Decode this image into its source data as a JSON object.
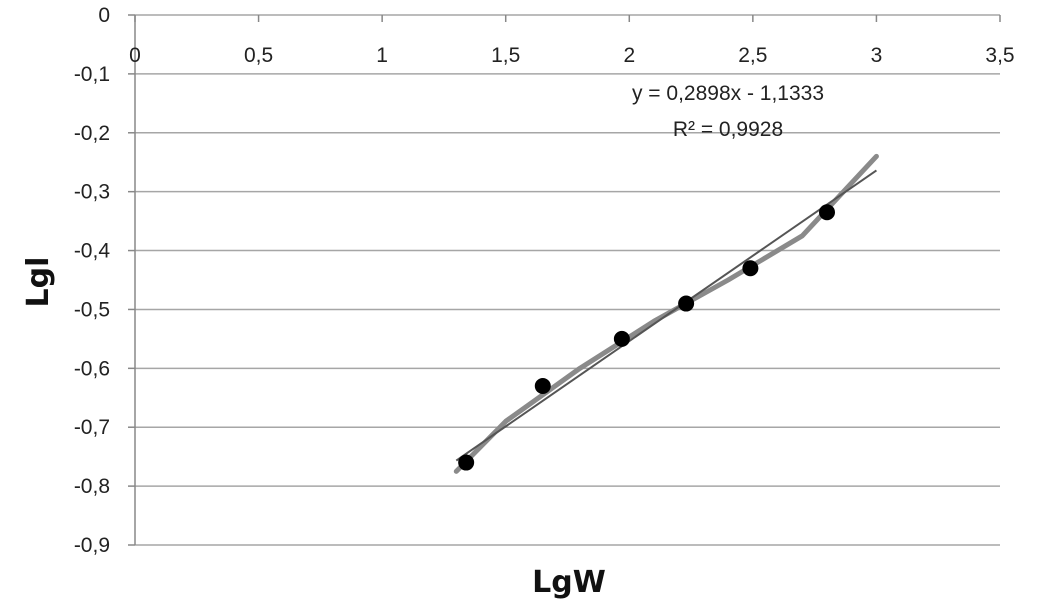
{
  "chart_data": {
    "type": "scatter",
    "title": "",
    "xlabel": "LgW",
    "ylabel": "Lgl",
    "xlim": [
      0,
      3.5
    ],
    "ylim": [
      -0.9,
      0
    ],
    "x_ticks": [
      "0",
      "0,5",
      "1",
      "1,5",
      "2",
      "2,5",
      "3",
      "3,5"
    ],
    "y_ticks": [
      "0",
      "-0,1",
      "-0,2",
      "-0,3",
      "-0,4",
      "-0,5",
      "-0,6",
      "-0,7",
      "-0,8",
      "-0,9"
    ],
    "x_tick_values": [
      0,
      0.5,
      1,
      1.5,
      2,
      2.5,
      3,
      3.5
    ],
    "y_tick_values": [
      0,
      -0.1,
      -0.2,
      -0.3,
      -0.4,
      -0.5,
      -0.6,
      -0.7,
      -0.8,
      -0.9
    ],
    "grid": "horizontal",
    "x_axis_position": "top",
    "series": [
      {
        "points": [
          {
            "x": 1.34,
            "y": -0.76
          },
          {
            "x": 1.65,
            "y": -0.63
          },
          {
            "x": 1.97,
            "y": -0.55
          },
          {
            "x": 2.23,
            "y": -0.49
          },
          {
            "x": 2.49,
            "y": -0.43
          },
          {
            "x": 2.8,
            "y": -0.335
          }
        ]
      }
    ],
    "smooth_curve": [
      {
        "x": 1.3,
        "y": -0.775
      },
      {
        "x": 1.5,
        "y": -0.69
      },
      {
        "x": 1.8,
        "y": -0.6
      },
      {
        "x": 2.1,
        "y": -0.52
      },
      {
        "x": 2.4,
        "y": -0.45
      },
      {
        "x": 2.7,
        "y": -0.375
      },
      {
        "x": 3.0,
        "y": -0.24
      }
    ],
    "trendline": {
      "slope": 0.2898,
      "intercept": -1.1333,
      "x_range": [
        1.3,
        3.0
      ],
      "equation_label": "y = 0,2898x - 1,1333",
      "r2_label": "R² = 0,9928"
    },
    "colors": {
      "points": "#000000",
      "trendline": "#555555",
      "curve": "#8a8a8a",
      "grid": "#a6a6a6",
      "axis": "#888888"
    }
  }
}
